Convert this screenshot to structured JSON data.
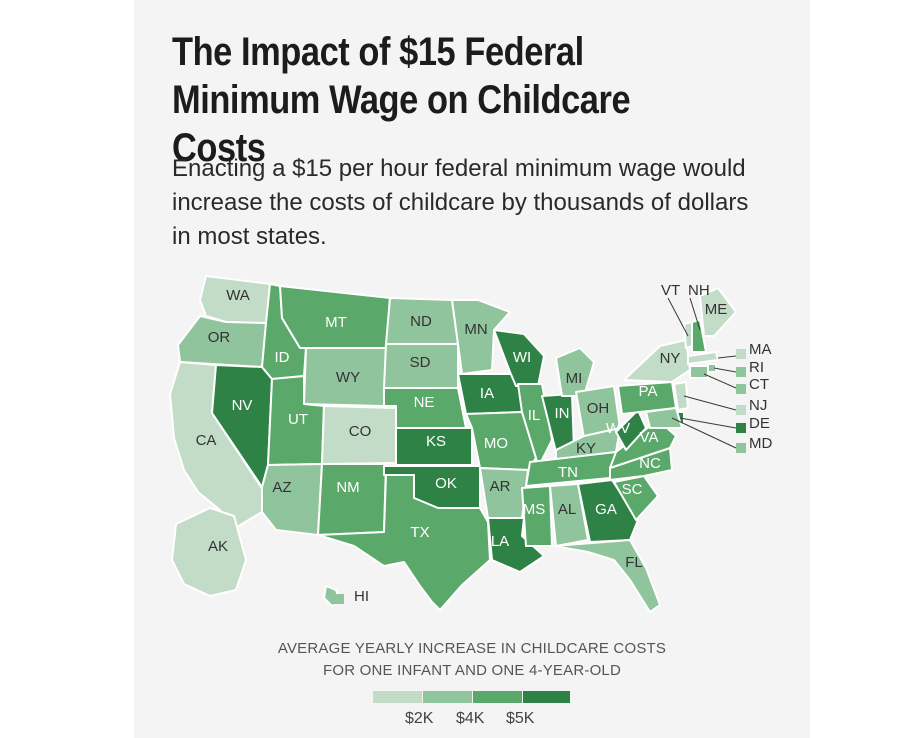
{
  "title": "The Impact of $15 Federal Minimum Wage on Childcare Costs",
  "subtitle": "Enacting a $15 per hour federal minimum wage would increase the costs of childcare by thousands of dollars in most states.",
  "legend": {
    "caption_line1": "AVERAGE YEARLY INCREASE IN CHILDCARE COSTS",
    "caption_line2": "FOR ONE INFANT AND ONE 4-YEAR-OLD",
    "labels": [
      "$2K",
      "$4K",
      "$5K"
    ],
    "colors": [
      "#c2dcc7",
      "#90c49c",
      "#5aa96b",
      "#2e8246"
    ]
  },
  "states": [
    {
      "code": "WA",
      "level": 0
    },
    {
      "code": "OR",
      "level": 1
    },
    {
      "code": "CA",
      "level": 0
    },
    {
      "code": "NV",
      "level": 3
    },
    {
      "code": "ID",
      "level": 2
    },
    {
      "code": "MT",
      "level": 2
    },
    {
      "code": "WY",
      "level": 1
    },
    {
      "code": "UT",
      "level": 2
    },
    {
      "code": "CO",
      "level": 0
    },
    {
      "code": "AZ",
      "level": 1
    },
    {
      "code": "NM",
      "level": 2
    },
    {
      "code": "ND",
      "level": 1
    },
    {
      "code": "SD",
      "level": 1
    },
    {
      "code": "NE",
      "level": 2
    },
    {
      "code": "KS",
      "level": 3
    },
    {
      "code": "OK",
      "level": 3
    },
    {
      "code": "TX",
      "level": 2
    },
    {
      "code": "MN",
      "level": 1
    },
    {
      "code": "IA",
      "level": 3
    },
    {
      "code": "MO",
      "level": 2
    },
    {
      "code": "AR",
      "level": 1
    },
    {
      "code": "LA",
      "level": 3
    },
    {
      "code": "WI",
      "level": 3
    },
    {
      "code": "IL",
      "level": 2
    },
    {
      "code": "IN",
      "level": 3
    },
    {
      "code": "MI",
      "level": 1
    },
    {
      "code": "OH",
      "level": 1
    },
    {
      "code": "KY",
      "level": 1
    },
    {
      "code": "TN",
      "level": 2
    },
    {
      "code": "MS",
      "level": 2
    },
    {
      "code": "AL",
      "level": 1
    },
    {
      "code": "GA",
      "level": 3
    },
    {
      "code": "FL",
      "level": 1
    },
    {
      "code": "SC",
      "level": 2
    },
    {
      "code": "NC",
      "level": 2
    },
    {
      "code": "VA",
      "level": 2
    },
    {
      "code": "WV",
      "level": 3
    },
    {
      "code": "PA",
      "level": 2
    },
    {
      "code": "NY",
      "level": 0
    },
    {
      "code": "VT",
      "level": 0
    },
    {
      "code": "NH",
      "level": 2
    },
    {
      "code": "ME",
      "level": 0
    },
    {
      "code": "MA",
      "level": 0
    },
    {
      "code": "RI",
      "level": 1
    },
    {
      "code": "CT",
      "level": 1
    },
    {
      "code": "NJ",
      "level": 0
    },
    {
      "code": "DE",
      "level": 3
    },
    {
      "code": "MD",
      "level": 1
    },
    {
      "code": "AK",
      "level": 0
    },
    {
      "code": "HI",
      "level": 1
    }
  ]
}
